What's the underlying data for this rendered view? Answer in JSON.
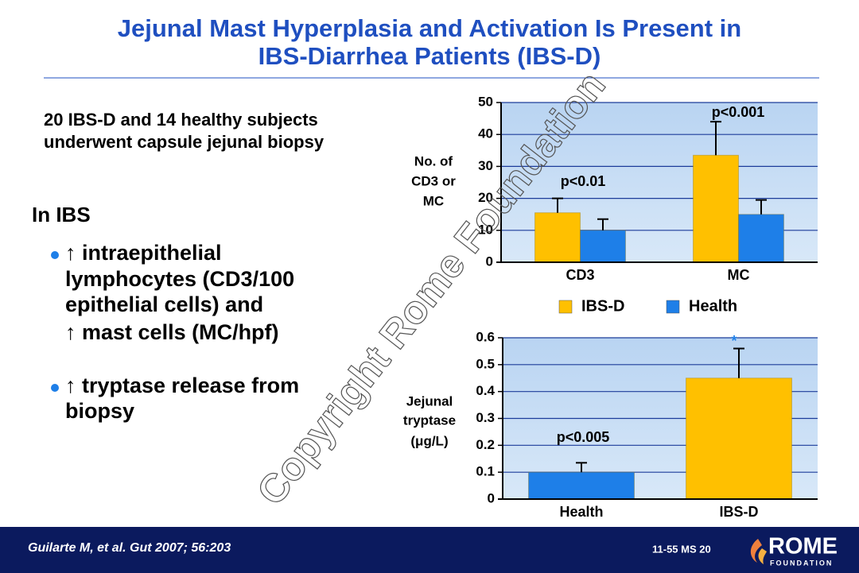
{
  "slide": {
    "title": [
      "Jejunal Mast Hyperplasia and Activation Is Present in",
      "IBS-Diarrhea Patients (IBS-D)"
    ],
    "intro": [
      "20 IBS-D  and 14 healthy subjects",
      "underwent capsule jejunal biopsy"
    ],
    "heading": "In IBS",
    "bullets": [
      [
        "↑ intraepithelial",
        "lymphocytes (CD3/100",
        "epithelial cells) and",
        "↑ mast cells (MC/hpf)"
      ],
      [
        "↑ tryptase release from",
        "biopsy"
      ]
    ],
    "watermark": "Copyright Rome Foundation",
    "citation": "Guilarte M, et al. Gut 2007; 56:203",
    "slide_number": "11-55  MS 20",
    "logo": {
      "name": "ROME",
      "sub": "FOUNDATION"
    }
  },
  "chart_data": [
    {
      "type": "bar",
      "y_label": [
        "No. of",
        "CD3 or",
        "MC"
      ],
      "categories": [
        "CD3",
        "MC"
      ],
      "series": [
        {
          "name": "IBS-D",
          "color": "#FFC000",
          "values": [
            15.5,
            33.5
          ],
          "errors": [
            4.5,
            10.5
          ]
        },
        {
          "name": "Health",
          "color": "#1E7FE8",
          "values": [
            10,
            15
          ],
          "errors": [
            3.5,
            4.5
          ]
        }
      ],
      "ylim": [
        0,
        50
      ],
      "yticks": [
        0,
        10,
        20,
        30,
        40,
        50
      ],
      "grid": true,
      "annotations": [
        "p<0.01",
        "p<0.001"
      ]
    },
    {
      "type": "bar",
      "y_label": [
        "Jejunal",
        "tryptase",
        "(μg/L)"
      ],
      "categories": [
        "Health",
        "IBS-D"
      ],
      "values": [
        0.1,
        0.45
      ],
      "errors": [
        0.035,
        0.11
      ],
      "colors": [
        "#1E7FE8",
        "#FFC000"
      ],
      "ylim": [
        0,
        0.6
      ],
      "yticks": [
        0,
        0.1,
        0.2,
        0.3,
        0.4,
        0.5,
        0.6
      ],
      "grid": true,
      "annotations": [
        "p<0.005",
        "*"
      ]
    }
  ]
}
